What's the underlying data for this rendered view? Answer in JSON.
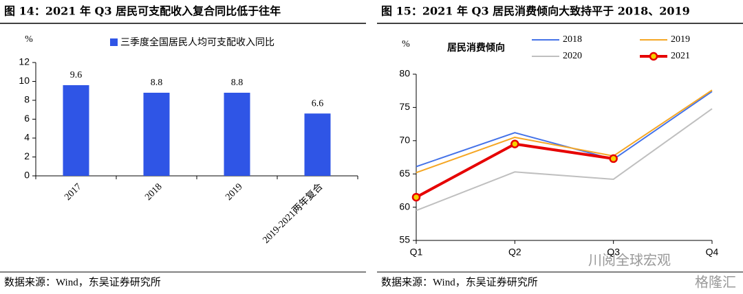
{
  "chart_data": [
    {
      "type": "bar",
      "title": "图 14：2021 年 Q3 居民可支配收入复合同比低于往年",
      "y_label": "%",
      "legend": "三季度全国居民人均可支配收入同比",
      "categories": [
        "2017",
        "2018",
        "2019",
        "2019-2021两年复合"
      ],
      "values": [
        9.6,
        8.8,
        8.8,
        6.6
      ],
      "color": "#2f55e6",
      "ylim": [
        0,
        12
      ],
      "yticks": [
        0,
        2,
        4,
        6,
        8,
        10,
        12
      ],
      "source": "数据来源：Wind，东吴证券研究所"
    },
    {
      "type": "line",
      "title": "图 15：2021 年 Q3 居民消费倾向大致持平于 2018、2019",
      "y_label": "%",
      "annotation": "居民消费倾向",
      "categories": [
        "Q1",
        "Q2",
        "Q3",
        "Q4"
      ],
      "series": [
        {
          "name": "2018",
          "color": "#4472e8",
          "values": [
            66.1,
            71.2,
            67.2,
            77.4
          ]
        },
        {
          "name": "2019",
          "color": "#f5a623",
          "values": [
            65.2,
            70.5,
            67.7,
            77.6
          ]
        },
        {
          "name": "2020",
          "color": "#bfbfbf",
          "values": [
            59.5,
            65.3,
            64.2,
            74.8
          ]
        },
        {
          "name": "2021",
          "color": "#e60000",
          "values": [
            61.5,
            69.5,
            67.3,
            null
          ],
          "markers": true
        }
      ],
      "ylim": [
        55,
        80
      ],
      "yticks": [
        55,
        60,
        65,
        70,
        75,
        80
      ],
      "source": "数据来源：Wind，东吴证券研究所"
    }
  ],
  "watermarks": [
    "川阅全球宏观",
    "格隆汇"
  ]
}
